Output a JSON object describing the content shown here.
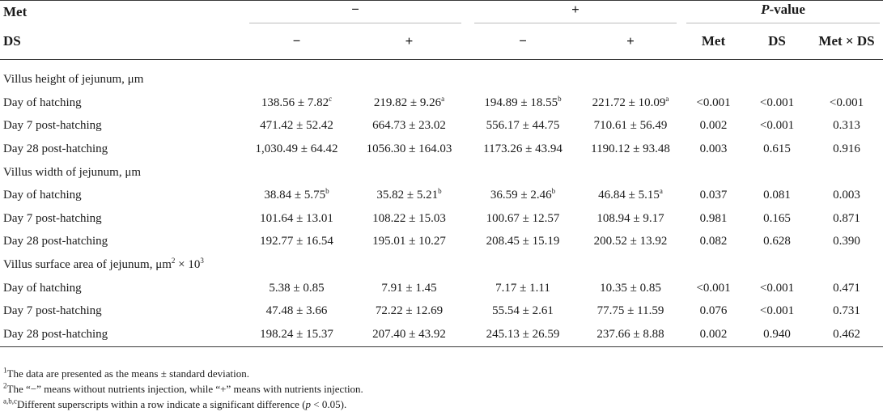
{
  "header": {
    "met_label": "Met",
    "ds_label": "DS",
    "met_minus": "−",
    "met_plus": "+",
    "pvalue_italic": "P",
    "pvalue_rest": "-value",
    "ds_cols": [
      "−",
      "+",
      "−",
      "+"
    ],
    "p_cols": [
      "Met",
      "DS",
      "Met × DS"
    ]
  },
  "sections": [
    {
      "title": "Villus height of jejunum, μm",
      "title_sup": "",
      "title_suffix": "",
      "rows": [
        {
          "label": "Day of hatching",
          "values": [
            {
              "v": "138.56 ± 7.82",
              "s": "c"
            },
            {
              "v": "219.82 ± 9.26",
              "s": "a"
            },
            {
              "v": "194.89 ± 18.55",
              "s": "b"
            },
            {
              "v": "221.72 ± 10.09",
              "s": "a"
            }
          ],
          "p": [
            "<0.001",
            "<0.001",
            "<0.001"
          ]
        },
        {
          "label": "Day 7 post-hatching",
          "values": [
            {
              "v": "471.42 ± 52.42",
              "s": ""
            },
            {
              "v": "664.73 ± 23.02",
              "s": ""
            },
            {
              "v": "556.17 ± 44.75",
              "s": ""
            },
            {
              "v": "710.61 ± 56.49",
              "s": ""
            }
          ],
          "p": [
            "0.002",
            "<0.001",
            "0.313"
          ]
        },
        {
          "label": "Day 28 post-hatching",
          "values": [
            {
              "v": "1,030.49 ± 64.42",
              "s": ""
            },
            {
              "v": "1056.30 ± 164.03",
              "s": ""
            },
            {
              "v": "1173.26 ± 43.94",
              "s": ""
            },
            {
              "v": "1190.12 ± 93.48",
              "s": ""
            }
          ],
          "p": [
            "0.003",
            "0.615",
            "0.916"
          ]
        }
      ]
    },
    {
      "title": "Villus width of jejunum, μm",
      "title_sup": "",
      "title_suffix": "",
      "rows": [
        {
          "label": "Day of hatching",
          "values": [
            {
              "v": "38.84 ± 5.75",
              "s": "b"
            },
            {
              "v": "35.82 ± 5.21",
              "s": "b"
            },
            {
              "v": "36.59 ± 2.46",
              "s": "b"
            },
            {
              "v": "46.84 ± 5.15",
              "s": "a"
            }
          ],
          "p": [
            "0.037",
            "0.081",
            "0.003"
          ]
        },
        {
          "label": "Day 7 post-hatching",
          "values": [
            {
              "v": "101.64 ± 13.01",
              "s": ""
            },
            {
              "v": "108.22 ± 15.03",
              "s": ""
            },
            {
              "v": "100.67 ± 12.57",
              "s": ""
            },
            {
              "v": "108.94 ± 9.17",
              "s": ""
            }
          ],
          "p": [
            "0.981",
            "0.165",
            "0.871"
          ]
        },
        {
          "label": "Day 28 post-hatching",
          "values": [
            {
              "v": "192.77 ± 16.54",
              "s": ""
            },
            {
              "v": "195.01 ± 10.27",
              "s": ""
            },
            {
              "v": "208.45 ± 15.19",
              "s": ""
            },
            {
              "v": "200.52 ± 13.92",
              "s": ""
            }
          ],
          "p": [
            "0.082",
            "0.628",
            "0.390"
          ]
        }
      ]
    },
    {
      "title": "Villus surface area of jejunum, μm",
      "title_sup": "2",
      "title_suffix": " × 10",
      "title_sup2": "3",
      "rows": [
        {
          "label": "Day of hatching",
          "values": [
            {
              "v": "5.38 ± 0.85",
              "s": ""
            },
            {
              "v": "7.91 ± 1.45",
              "s": ""
            },
            {
              "v": "7.17 ± 1.11",
              "s": ""
            },
            {
              "v": "10.35 ± 0.85",
              "s": ""
            }
          ],
          "p": [
            "<0.001",
            "<0.001",
            "0.471"
          ]
        },
        {
          "label": "Day 7 post-hatching",
          "values": [
            {
              "v": "47.48 ± 3.66",
              "s": ""
            },
            {
              "v": "72.22 ± 12.69",
              "s": ""
            },
            {
              "v": "55.54 ± 2.61",
              "s": ""
            },
            {
              "v": "77.75 ± 11.59",
              "s": ""
            }
          ],
          "p": [
            "0.076",
            "<0.001",
            "0.731"
          ]
        },
        {
          "label": "Day 28 post-hatching",
          "values": [
            {
              "v": "198.24 ± 15.37",
              "s": ""
            },
            {
              "v": "207.40 ± 43.92",
              "s": ""
            },
            {
              "v": "245.13 ± 26.59",
              "s": ""
            },
            {
              "v": "237.66 ± 8.88",
              "s": ""
            }
          ],
          "p": [
            "0.002",
            "0.940",
            "0.462"
          ]
        }
      ]
    }
  ],
  "notes": [
    {
      "sup": "1",
      "text": "The data are presented as the means ± standard deviation."
    },
    {
      "sup": "2",
      "text": "The “−” means without nutrients injection, while “+” means with nutrients injection."
    },
    {
      "sup": "a,b,c",
      "text": "Different superscripts within a row indicate a significant difference (",
      "italic": "p",
      "tail": " < 0.05)."
    }
  ]
}
